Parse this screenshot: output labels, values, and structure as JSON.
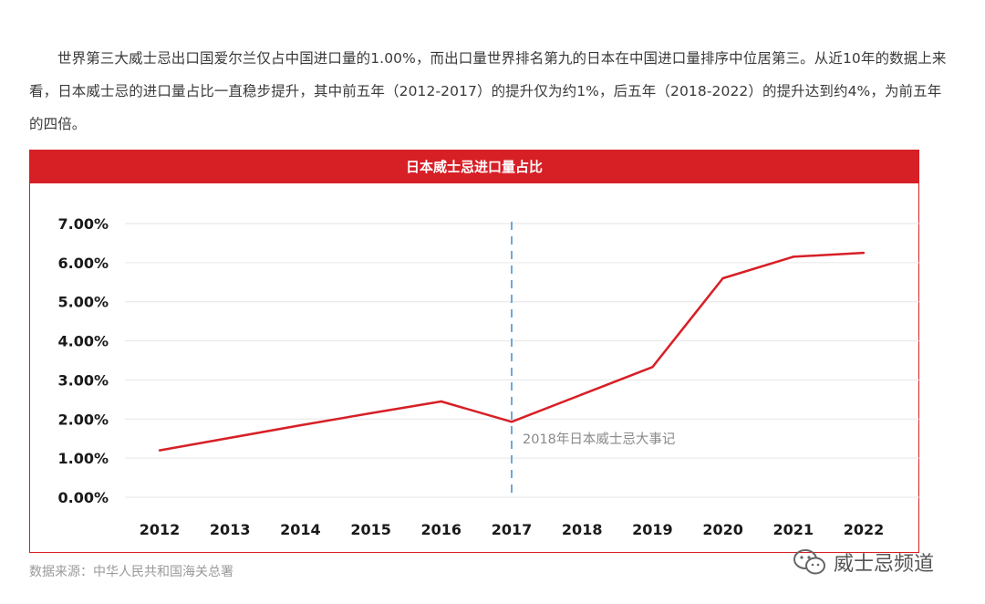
{
  "intro_text": "世界第三大威士忌出口国爱尔兰仅占中国进口量的1.00%，而出口量世界排名第九的日本在中国进口量排序中位居第三。从近10年的数据上来看，日本威士忌的进口量占比一直稳步提升，其中前五年（2012-2017）的提升仅为约1%，后五年（2018-2022）的提升达到约4%，为前五年的四倍。",
  "source_text": "数据来源：中华人民共和国海关总署",
  "watermark": {
    "icon": "wechat-icon",
    "text": "威士忌频道"
  },
  "colors": {
    "accent": "#d71f26",
    "marker": "#6ea8dc",
    "grid": "#e6e6e6"
  },
  "chart_data": {
    "type": "line",
    "title": "日本威士忌进口量占比",
    "categories": [
      "2012",
      "2013",
      "2014",
      "2015",
      "2016",
      "2017",
      "2018",
      "2019",
      "2020",
      "2021",
      "2022"
    ],
    "series": [
      {
        "name": "日本威士忌进口量占比",
        "values": [
          1.2,
          1.52,
          1.84,
          2.15,
          2.45,
          1.93,
          2.63,
          3.33,
          5.6,
          6.15,
          6.25
        ]
      }
    ],
    "yticks": [
      "0.00%",
      "1.00%",
      "2.00%",
      "3.00%",
      "4.00%",
      "5.00%",
      "6.00%",
      "7.00%"
    ],
    "ylim": [
      0,
      7
    ],
    "xlabel": "",
    "ylabel": "",
    "grid": true,
    "annotation": {
      "category": "2017",
      "label": "2018年日本威士忌大事记"
    }
  }
}
